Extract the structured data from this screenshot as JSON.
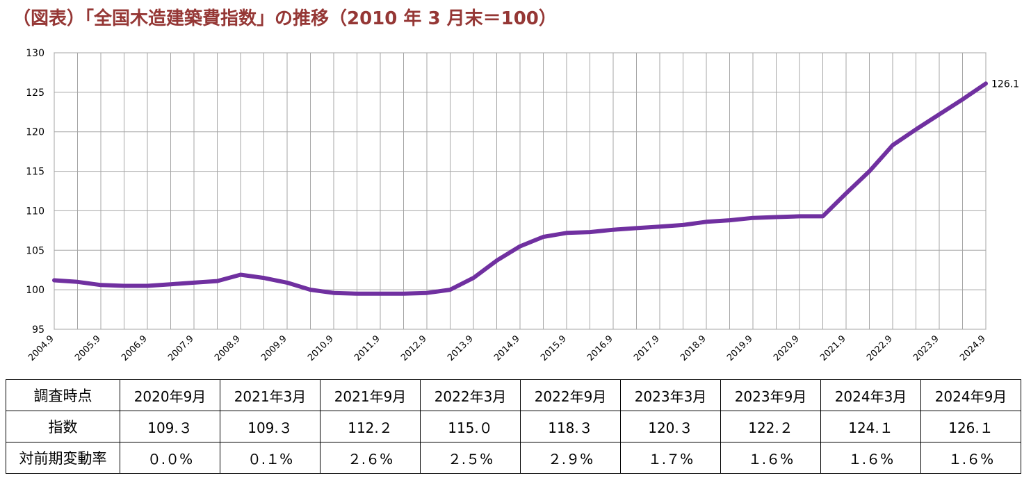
{
  "title": "（図表）「全国木造建築費指数」の推移（2010 年 3 月末＝100）",
  "chart_data": {
    "type": "line",
    "title": "（図表）「全国木造建築費指数」の推移（2010 年 3 月末＝100）",
    "xlabel": "",
    "ylabel": "",
    "ylim": [
      95,
      130
    ],
    "y_ticks": [
      95,
      100,
      105,
      110,
      115,
      120,
      125,
      130
    ],
    "x_tick_labels": [
      "2004.9",
      "2005.9",
      "2006.9",
      "2007.9",
      "2008.9",
      "2009.9",
      "2010.9",
      "2011.9",
      "2012.9",
      "2013.9",
      "2014.9",
      "2015.9",
      "2016.9",
      "2017.9",
      "2018.9",
      "2019.9",
      "2020.9",
      "2021.9",
      "2022.9",
      "2023.9",
      "2024.9"
    ],
    "grid": true,
    "color": "#7030A0",
    "end_label": "126.1",
    "series": [
      {
        "x": [
          "2004.9",
          "2005.3",
          "2005.9",
          "2006.3",
          "2006.9",
          "2007.3",
          "2007.9",
          "2008.3",
          "2008.9",
          "2009.3",
          "2009.9",
          "2010.3",
          "2010.9",
          "2011.3",
          "2011.9",
          "2012.3",
          "2012.9",
          "2013.3",
          "2013.9",
          "2014.3",
          "2014.9",
          "2015.3",
          "2015.9",
          "2016.3",
          "2016.9",
          "2017.3",
          "2017.9",
          "2018.3",
          "2018.9",
          "2019.3",
          "2019.9",
          "2020.3",
          "2020.9",
          "2021.3",
          "2021.9",
          "2022.3",
          "2022.9",
          "2023.3",
          "2023.9",
          "2024.3",
          "2024.9"
        ],
        "values": [
          101.2,
          101.0,
          100.6,
          100.5,
          100.5,
          100.7,
          100.9,
          101.1,
          101.9,
          101.5,
          100.9,
          100.0,
          99.6,
          99.5,
          99.5,
          99.5,
          99.6,
          100.0,
          101.5,
          103.7,
          105.5,
          106.7,
          107.2,
          107.3,
          107.6,
          107.8,
          108.0,
          108.2,
          108.6,
          108.8,
          109.1,
          109.2,
          109.3,
          109.3,
          112.2,
          115.0,
          118.3,
          120.3,
          122.2,
          124.1,
          126.1
        ]
      }
    ]
  },
  "table": {
    "row_headers": [
      "調査時点",
      "指数",
      "対前期変動率"
    ],
    "columns": [
      "2020年9月",
      "2021年3月",
      "2021年9月",
      "2022年3月",
      "2022年9月",
      "2023年3月",
      "2023年9月",
      "2024年3月",
      "2024年9月"
    ],
    "index_values": [
      "109.３",
      "109.３",
      "112.２",
      "115.０",
      "118.３",
      "120.３",
      "122.２",
      "124.１",
      "126.１"
    ],
    "change_rates": [
      "０.０%",
      "０.１%",
      "２.６%",
      "２.５%",
      "２.９%",
      "１.７%",
      "１.６%",
      "１.６%",
      "１.６%"
    ]
  }
}
